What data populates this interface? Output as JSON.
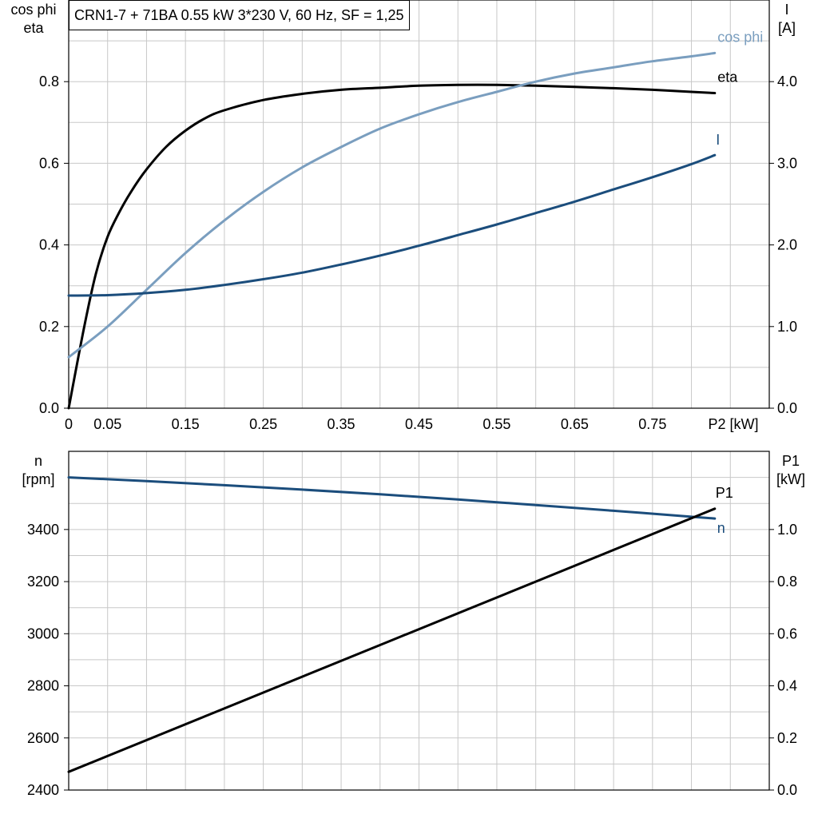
{
  "title": "CRN1-7 + 71BA   0.55 kW   3*230 V, 60 Hz, SF = 1,25",
  "colors": {
    "eta": "#000000",
    "cosphi": "#7a9ebf",
    "I": "#1b4d7c",
    "n": "#1b4d7c",
    "P1": "#000000",
    "grid": "#c8c8c8"
  },
  "chart_data": [
    {
      "type": "line",
      "left_axis_label": [
        "cos phi",
        "eta"
      ],
      "right_axis_label": [
        "I",
        "[A]"
      ],
      "x_axis_label": "P2 [kW]",
      "xlim": [
        0,
        0.9
      ],
      "ylim_left": [
        0,
        1.0
      ],
      "ylim_right": [
        0,
        5.0
      ],
      "x_tick_labels": [
        "0",
        "0.05",
        "0.15",
        "0.25",
        "0.35",
        "0.45",
        "0.55",
        "0.65",
        "0.75"
      ],
      "x_ticks": [
        0,
        0.05,
        0.15,
        0.25,
        0.35,
        0.45,
        0.55,
        0.65,
        0.75
      ],
      "left_ticks": [
        0.0,
        0.2,
        0.4,
        0.6,
        0.8
      ],
      "left_tick_labels": [
        "0.0",
        "0.2",
        "0.4",
        "0.6",
        "0.8"
      ],
      "right_ticks": [
        0.0,
        1.0,
        2.0,
        3.0,
        4.0
      ],
      "right_tick_labels": [
        "0.0",
        "1.0",
        "2.0",
        "3.0",
        "4.0"
      ],
      "grid": true,
      "series": [
        {
          "name": "eta",
          "axis": "left",
          "x": [
            0,
            0.02,
            0.035,
            0.05,
            0.065,
            0.08,
            0.1,
            0.125,
            0.15,
            0.175,
            0.2,
            0.25,
            0.3,
            0.35,
            0.4,
            0.45,
            0.5,
            0.55,
            0.6,
            0.65,
            0.7,
            0.75,
            0.8,
            0.83
          ],
          "y": [
            0.0,
            0.2,
            0.33,
            0.42,
            0.48,
            0.53,
            0.585,
            0.64,
            0.68,
            0.71,
            0.73,
            0.755,
            0.77,
            0.78,
            0.785,
            0.79,
            0.792,
            0.792,
            0.79,
            0.787,
            0.784,
            0.78,
            0.775,
            0.772
          ]
        },
        {
          "name": "cos phi",
          "axis": "left",
          "x": [
            0,
            0.05,
            0.1,
            0.15,
            0.2,
            0.25,
            0.3,
            0.35,
            0.4,
            0.45,
            0.5,
            0.55,
            0.6,
            0.65,
            0.7,
            0.75,
            0.8,
            0.83
          ],
          "y": [
            0.125,
            0.2,
            0.29,
            0.38,
            0.46,
            0.53,
            0.59,
            0.64,
            0.685,
            0.72,
            0.75,
            0.775,
            0.8,
            0.82,
            0.835,
            0.85,
            0.862,
            0.87
          ]
        },
        {
          "name": "I",
          "axis": "right",
          "x": [
            0,
            0.05,
            0.1,
            0.15,
            0.2,
            0.25,
            0.3,
            0.35,
            0.4,
            0.45,
            0.5,
            0.55,
            0.6,
            0.65,
            0.7,
            0.75,
            0.8,
            0.83
          ],
          "y": [
            1.38,
            1.385,
            1.41,
            1.45,
            1.51,
            1.58,
            1.66,
            1.76,
            1.87,
            1.99,
            2.12,
            2.25,
            2.39,
            2.53,
            2.68,
            2.83,
            2.99,
            3.1
          ]
        }
      ]
    },
    {
      "type": "line",
      "left_axis_label": [
        "n",
        "[rpm]"
      ],
      "right_axis_label": [
        "P1",
        "[kW]"
      ],
      "xlim": [
        0,
        0.9
      ],
      "ylim_left": [
        2400,
        3700
      ],
      "ylim_right": [
        0.0,
        1.3
      ],
      "left_ticks": [
        2400,
        2600,
        2800,
        3000,
        3200,
        3400
      ],
      "left_tick_labels": [
        "2400",
        "2600",
        "2800",
        "3000",
        "3200",
        "3400"
      ],
      "right_ticks": [
        0.0,
        0.2,
        0.4,
        0.6,
        0.8,
        1.0
      ],
      "right_tick_labels": [
        "0.0",
        "0.2",
        "0.4",
        "0.6",
        "0.8",
        "1.0"
      ],
      "grid": true,
      "series": [
        {
          "name": "n",
          "axis": "left",
          "x": [
            0,
            0.1,
            0.2,
            0.3,
            0.4,
            0.5,
            0.6,
            0.7,
            0.8,
            0.83
          ],
          "y": [
            3600,
            3586,
            3570,
            3553,
            3535,
            3515,
            3494,
            3472,
            3449,
            3442
          ]
        },
        {
          "name": "P1",
          "axis": "right",
          "x": [
            0,
            0.83
          ],
          "y": [
            0.07,
            1.08
          ]
        }
      ]
    }
  ]
}
